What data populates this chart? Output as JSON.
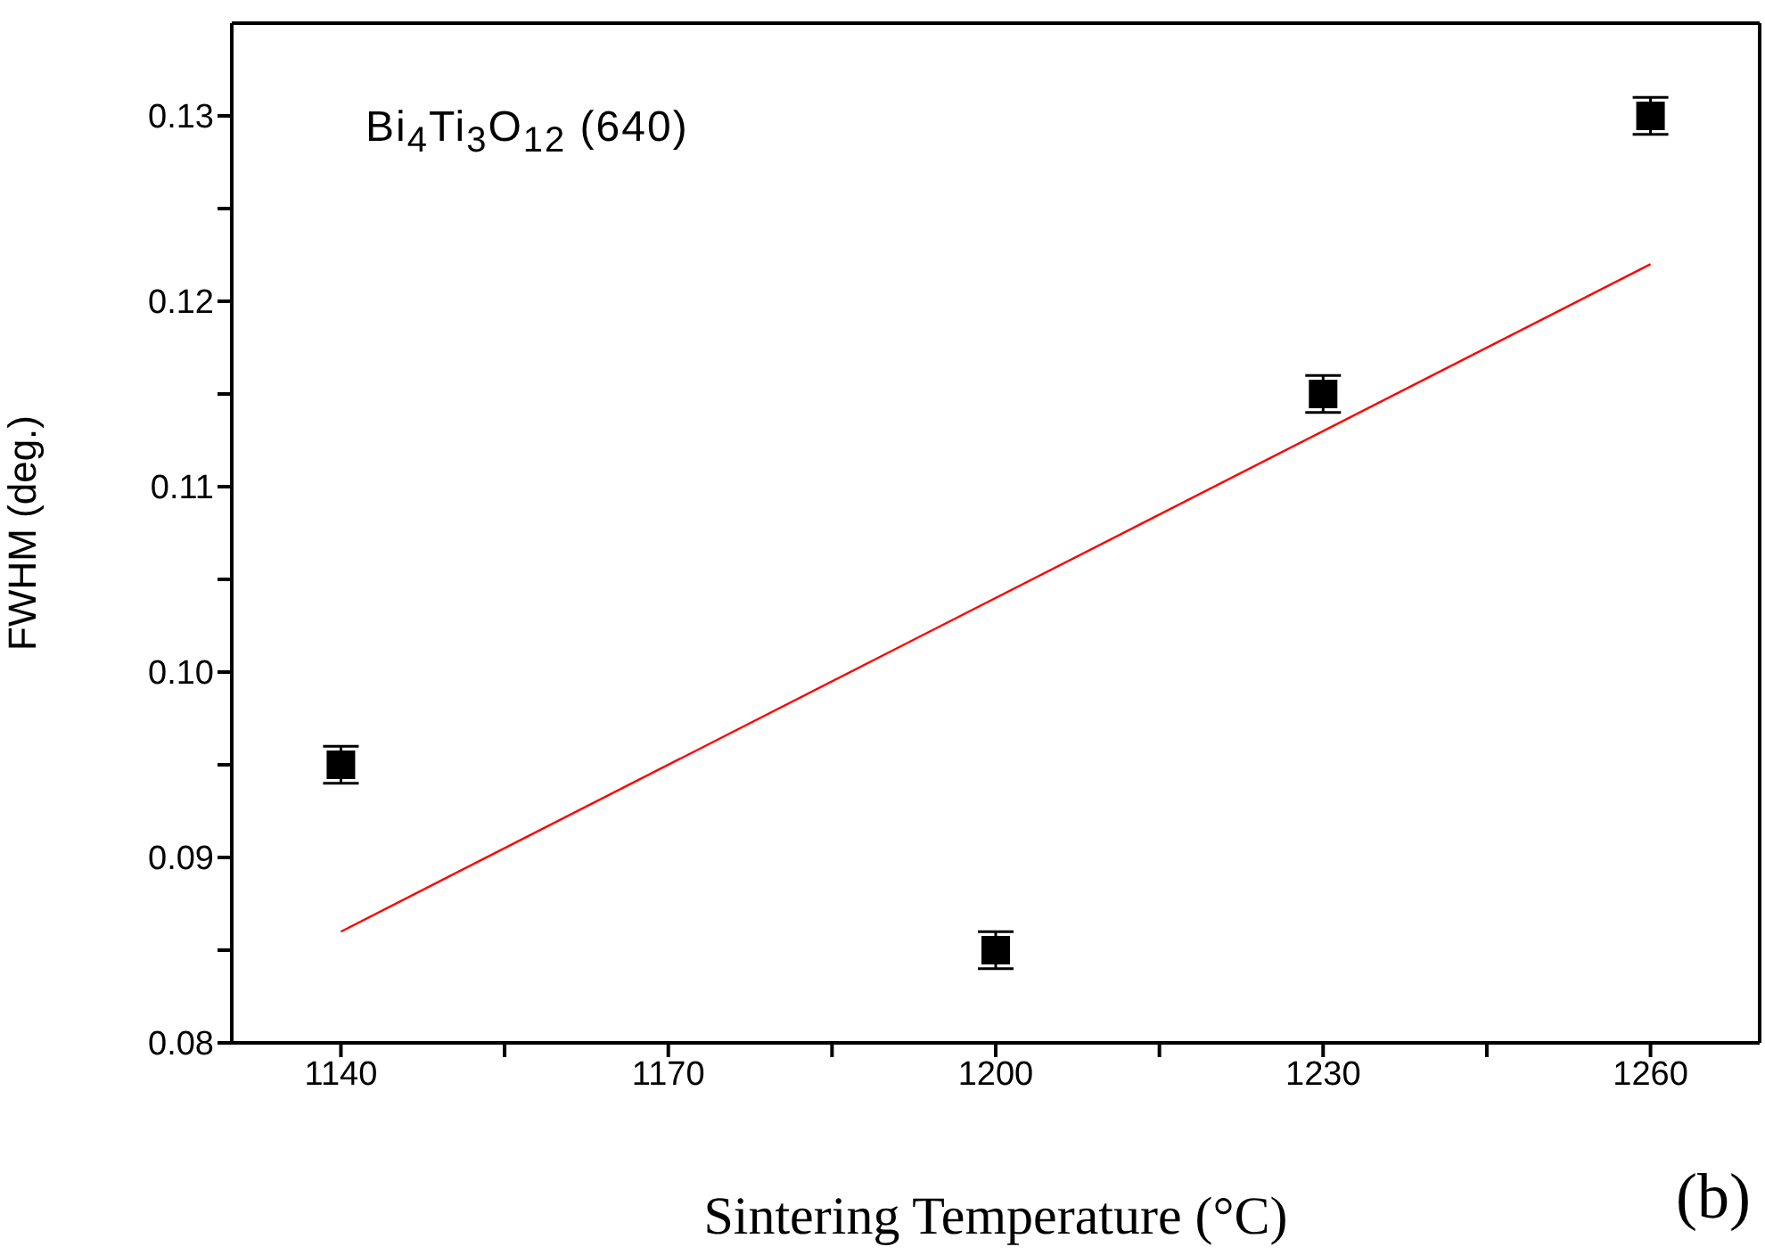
{
  "chart_data": {
    "type": "scatter",
    "xlabel": "Sintering Temperature (°C)",
    "ylabel": "FWHM (deg.)",
    "annotations": [
      "Bi$_{4}$Ti$_{3}$O$_{12}$ (640)",
      "(b)"
    ],
    "x": [
      1140,
      1200,
      1230,
      1260
    ],
    "series": [
      {
        "color": "#000000",
        "marker": "square",
        "values": [
          0.095,
          0.085,
          0.115,
          0.13
        ],
        "errors": [
          0.001,
          0.001,
          0.001,
          0.001
        ]
      },
      {
        "type": "line",
        "color": "#ff0000",
        "x": [
          1140,
          1260
        ],
        "values": [
          0.086,
          0.122
        ]
      }
    ],
    "xlim": [
      1130,
      1270
    ],
    "xticks": [
      1140,
      {
        "value": 1155,
        "label": null
      },
      1170,
      {
        "value": 1185,
        "label": null
      },
      1200,
      {
        "value": 1215,
        "label": null
      },
      1230,
      {
        "value": 1245,
        "label": null
      },
      1260
    ],
    "ylim": [
      0.08,
      0.135
    ],
    "yticks": [
      {
        "value": 0.08,
        "label": "0.08"
      },
      {
        "value": 0.085,
        "label": null
      },
      {
        "value": 0.09,
        "label": "0.09"
      },
      {
        "value": 0.095,
        "label": null
      },
      {
        "value": 0.1,
        "label": "0.10"
      },
      {
        "value": 0.105,
        "label": null
      },
      {
        "value": 0.11,
        "label": "0.11"
      },
      {
        "value": 0.115,
        "label": null
      },
      {
        "value": 0.12,
        "label": "0.12"
      },
      {
        "value": 0.125,
        "label": null
      },
      {
        "value": 0.13,
        "label": "0.13"
      }
    ]
  }
}
